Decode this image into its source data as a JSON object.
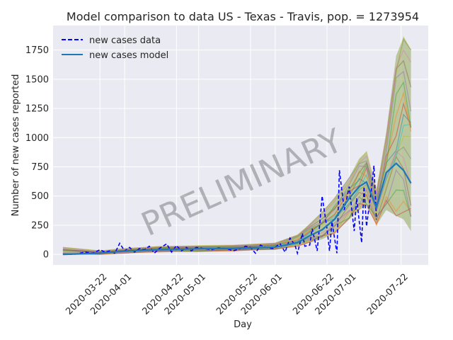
{
  "chart_data": {
    "type": "line",
    "title": "Model comparison to data US - Texas - Travis, pop. = 1273954",
    "xlabel": "Day",
    "ylabel": "Number of new cases reported",
    "watermark": "PRELIMINARY",
    "x_ticks": [
      "2020-03-22",
      "2020-04-01",
      "2020-04-22",
      "2020-05-01",
      "2020-05-22",
      "2020-06-01",
      "2020-06-22",
      "2020-07-01",
      "2020-07-22"
    ],
    "y_ticks": [
      0,
      250,
      500,
      750,
      1000,
      1250,
      1500,
      1750
    ],
    "xlim": [
      "2020-03-03",
      "2020-08-02"
    ],
    "ylim": [
      -90,
      1960
    ],
    "grid": true,
    "legend": {
      "placement": "top-left"
    },
    "colors": {
      "data": "#0000ff",
      "model": "#1f77b4",
      "background": "#eaeaf2",
      "grid": "#ffffff"
    },
    "series": [
      {
        "name": "new cases data",
        "style": "dashed",
        "x": [
          "2020-03-07",
          "2020-03-12",
          "2020-03-16",
          "2020-03-19",
          "2020-03-22",
          "2020-03-24",
          "2020-03-26",
          "2020-03-28",
          "2020-03-30",
          "2020-04-01",
          "2020-04-03",
          "2020-04-05",
          "2020-04-07",
          "2020-04-09",
          "2020-04-11",
          "2020-04-13",
          "2020-04-15",
          "2020-04-18",
          "2020-04-20",
          "2020-04-22",
          "2020-04-24",
          "2020-04-26",
          "2020-04-28",
          "2020-04-30",
          "2020-05-03",
          "2020-05-06",
          "2020-05-09",
          "2020-05-12",
          "2020-05-15",
          "2020-05-18",
          "2020-05-20",
          "2020-05-22",
          "2020-05-24",
          "2020-05-26",
          "2020-05-28",
          "2020-05-31",
          "2020-06-03",
          "2020-06-05",
          "2020-06-07",
          "2020-06-09",
          "2020-06-10",
          "2020-06-12",
          "2020-06-13",
          "2020-06-15",
          "2020-06-16",
          "2020-06-18",
          "2020-06-19",
          "2020-06-20",
          "2020-06-22",
          "2020-06-23",
          "2020-06-24",
          "2020-06-26",
          "2020-06-27",
          "2020-06-29",
          "2020-07-01",
          "2020-07-03",
          "2020-07-04",
          "2020-07-06",
          "2020-07-07",
          "2020-07-08",
          "2020-07-10",
          "2020-07-11",
          "2020-07-12"
        ],
        "values": [
          0,
          2,
          20,
          10,
          40,
          20,
          30,
          10,
          95,
          30,
          60,
          20,
          50,
          40,
          70,
          10,
          50,
          90,
          20,
          75,
          30,
          60,
          30,
          60,
          50,
          40,
          55,
          50,
          30,
          50,
          70,
          60,
          10,
          80,
          60,
          50,
          90,
          20,
          140,
          80,
          10,
          180,
          70,
          80,
          220,
          30,
          250,
          500,
          220,
          30,
          280,
          10,
          720,
          380,
          580,
          200,
          480,
          100,
          580,
          240,
          560,
          760,
          300
        ]
      },
      {
        "name": "new cases model",
        "style": "solid",
        "x": [
          "2020-03-07",
          "2020-03-22",
          "2020-04-01",
          "2020-04-15",
          "2020-05-01",
          "2020-05-15",
          "2020-06-01",
          "2020-06-10",
          "2020-06-15",
          "2020-06-20",
          "2020-06-25",
          "2020-07-01",
          "2020-07-05",
          "2020-07-08",
          "2020-07-12",
          "2020-07-16",
          "2020-07-20",
          "2020-07-23",
          "2020-07-26"
        ],
        "values": [
          0,
          10,
          28,
          40,
          48,
          50,
          62,
          100,
          160,
          210,
          300,
          480,
          580,
          620,
          400,
          700,
          780,
          720,
          610
        ]
      }
    ],
    "ensemble_band": {
      "label": "model ensemble (unlabeled)",
      "x": [
        "2020-03-07",
        "2020-03-22",
        "2020-04-01",
        "2020-04-15",
        "2020-05-01",
        "2020-05-15",
        "2020-06-01",
        "2020-06-10",
        "2020-06-15",
        "2020-06-20",
        "2020-06-25",
        "2020-07-01",
        "2020-07-05",
        "2020-07-08",
        "2020-07-12",
        "2020-07-16",
        "2020-07-20",
        "2020-07-23",
        "2020-07-26"
      ],
      "low": [
        0,
        0,
        10,
        20,
        25,
        30,
        40,
        70,
        100,
        130,
        180,
        300,
        380,
        420,
        250,
        380,
        330,
        300,
        200
      ],
      "high": [
        60,
        30,
        50,
        70,
        75,
        80,
        100,
        170,
        260,
        360,
        480,
        660,
        820,
        880,
        550,
        1050,
        1700,
        1860,
        1750
      ]
    }
  }
}
